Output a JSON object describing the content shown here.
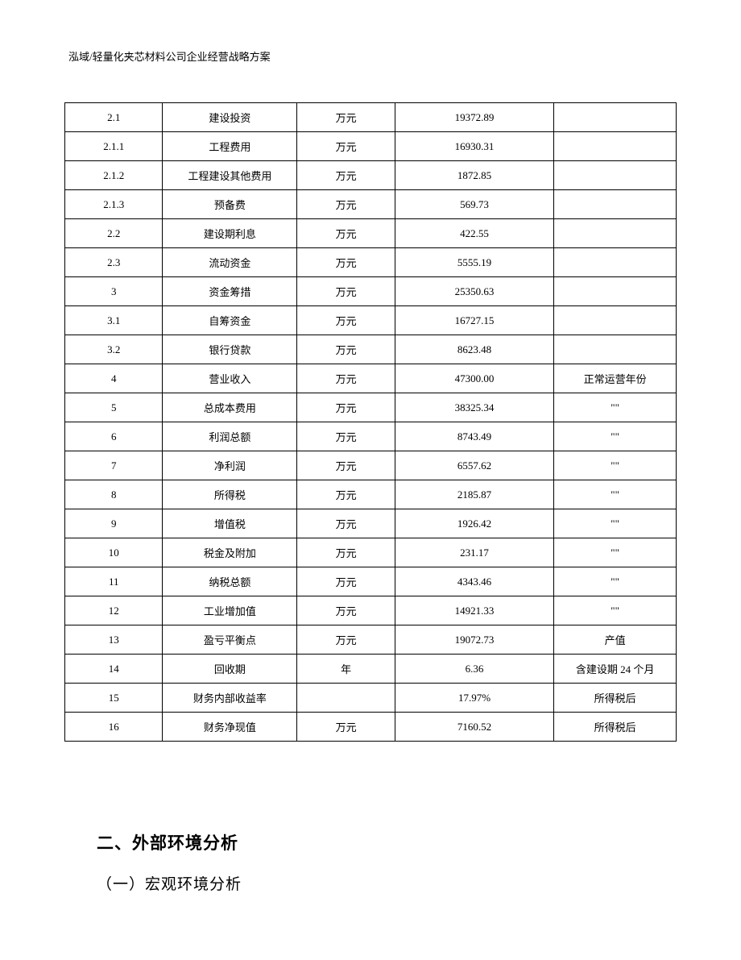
{
  "header": {
    "title": "泓域/轻量化夹芯材料公司企业经营战略方案"
  },
  "table": {
    "columns": [
      {
        "id": "col1",
        "width": "16%"
      },
      {
        "id": "col2",
        "width": "22%"
      },
      {
        "id": "col3",
        "width": "16%"
      },
      {
        "id": "col4",
        "width": "26%"
      },
      {
        "id": "col5",
        "width": "20%"
      }
    ],
    "border_color": "#000000",
    "background_color": "#ffffff",
    "text_color": "#000000",
    "font_size": 13,
    "rows": [
      {
        "c1": "2.1",
        "c2": "建设投资",
        "c3": "万元",
        "c4": "19372.89",
        "c5": ""
      },
      {
        "c1": "2.1.1",
        "c2": "工程费用",
        "c3": "万元",
        "c4": "16930.31",
        "c5": ""
      },
      {
        "c1": "2.1.2",
        "c2": "工程建设其他费用",
        "c3": "万元",
        "c4": "1872.85",
        "c5": ""
      },
      {
        "c1": "2.1.3",
        "c2": "预备费",
        "c3": "万元",
        "c4": "569.73",
        "c5": ""
      },
      {
        "c1": "2.2",
        "c2": "建设期利息",
        "c3": "万元",
        "c4": "422.55",
        "c5": ""
      },
      {
        "c1": "2.3",
        "c2": "流动资金",
        "c3": "万元",
        "c4": "5555.19",
        "c5": ""
      },
      {
        "c1": "3",
        "c2": "资金筹措",
        "c3": "万元",
        "c4": "25350.63",
        "c5": ""
      },
      {
        "c1": "3.1",
        "c2": "自筹资金",
        "c3": "万元",
        "c4": "16727.15",
        "c5": ""
      },
      {
        "c1": "3.2",
        "c2": "银行贷款",
        "c3": "万元",
        "c4": "8623.48",
        "c5": ""
      },
      {
        "c1": "4",
        "c2": "营业收入",
        "c3": "万元",
        "c4": "47300.00",
        "c5": "正常运营年份"
      },
      {
        "c1": "5",
        "c2": "总成本费用",
        "c3": "万元",
        "c4": "38325.34",
        "c5": "\"\""
      },
      {
        "c1": "6",
        "c2": "利润总额",
        "c3": "万元",
        "c4": "8743.49",
        "c5": "\"\""
      },
      {
        "c1": "7",
        "c2": "净利润",
        "c3": "万元",
        "c4": "6557.62",
        "c5": "\"\""
      },
      {
        "c1": "8",
        "c2": "所得税",
        "c3": "万元",
        "c4": "2185.87",
        "c5": "\"\""
      },
      {
        "c1": "9",
        "c2": "增值税",
        "c3": "万元",
        "c4": "1926.42",
        "c5": "\"\""
      },
      {
        "c1": "10",
        "c2": "税金及附加",
        "c3": "万元",
        "c4": "231.17",
        "c5": "\"\""
      },
      {
        "c1": "11",
        "c2": "纳税总额",
        "c3": "万元",
        "c4": "4343.46",
        "c5": "\"\""
      },
      {
        "c1": "12",
        "c2": "工业增加值",
        "c3": "万元",
        "c4": "14921.33",
        "c5": "\"\""
      },
      {
        "c1": "13",
        "c2": "盈亏平衡点",
        "c3": "万元",
        "c4": "19072.73",
        "c5": "产值"
      },
      {
        "c1": "14",
        "c2": "回收期",
        "c3": "年",
        "c4": "6.36",
        "c5": "含建设期 24 个月"
      },
      {
        "c1": "15",
        "c2": "财务内部收益率",
        "c3": "",
        "c4": "17.97%",
        "c5": "所得税后"
      },
      {
        "c1": "16",
        "c2": "财务净现值",
        "c3": "万元",
        "c4": "7160.52",
        "c5": "所得税后"
      }
    ]
  },
  "headings": {
    "section": "二、外部环境分析",
    "subsection": "（一）宏观环境分析"
  }
}
